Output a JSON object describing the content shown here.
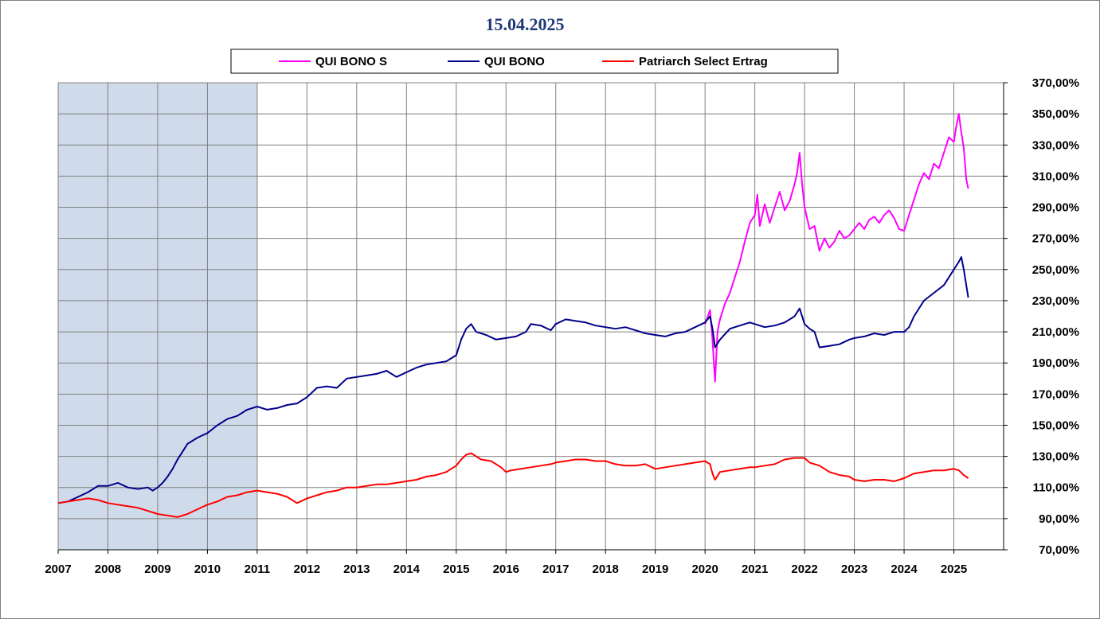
{
  "chart_data": {
    "type": "line",
    "title": "15.04.2025",
    "xlabel": "",
    "ylabel": "",
    "x_tick_labels": [
      "2007",
      "2008",
      "2009",
      "2010",
      "2011",
      "2012",
      "2013",
      "2014",
      "2015",
      "2016",
      "2017",
      "2018",
      "2019",
      "2020",
      "2021",
      "2022",
      "2023",
      "2024",
      "2025"
    ],
    "y_tick_labels": [
      "70,00%",
      "90,00%",
      "110,00%",
      "130,00%",
      "150,00%",
      "170,00%",
      "190,00%",
      "210,00%",
      "230,00%",
      "250,00%",
      "270,00%",
      "290,00%",
      "310,00%",
      "330,00%",
      "350,00%",
      "370,00%"
    ],
    "xlim": [
      2007.0,
      2026.0
    ],
    "ylim": [
      70,
      370
    ],
    "y_axis_position": "right",
    "grid": true,
    "legend_position": "top-center",
    "shaded_region": {
      "x_start": 2007.0,
      "x_end": 2011.0,
      "color": "#cfdbea"
    },
    "colors": {
      "QUI BONO S": "#ff00ff",
      "QUI BONO": "#00008b",
      "Patriarch Select Ertrag": "#ff0000"
    },
    "series": [
      {
        "name": "QUI BONO S",
        "color": "#ff00ff",
        "x": [
          2020.0,
          2020.1,
          2020.15,
          2020.2,
          2020.25,
          2020.3,
          2020.4,
          2020.5,
          2020.6,
          2020.7,
          2020.8,
          2020.9,
          2021.0,
          2021.05,
          2021.1,
          2021.2,
          2021.3,
          2021.4,
          2021.5,
          2021.6,
          2021.7,
          2021.8,
          2021.85,
          2021.9,
          2021.95,
          2022.0,
          2022.1,
          2022.2,
          2022.3,
          2022.4,
          2022.5,
          2022.6,
          2022.7,
          2022.8,
          2022.9,
          2023.0,
          2023.1,
          2023.2,
          2023.3,
          2023.4,
          2023.5,
          2023.6,
          2023.7,
          2023.8,
          2023.9,
          2024.0,
          2024.1,
          2024.2,
          2024.3,
          2024.4,
          2024.5,
          2024.6,
          2024.7,
          2024.8,
          2024.9,
          2025.0,
          2025.05,
          2025.1,
          2025.15,
          2025.2,
          2025.25,
          2025.29
        ],
        "values": [
          215,
          224,
          205,
          178,
          210,
          218,
          228,
          235,
          245,
          255,
          268,
          280,
          285,
          298,
          278,
          292,
          280,
          290,
          300,
          288,
          294,
          305,
          312,
          325,
          305,
          290,
          276,
          278,
          262,
          270,
          264,
          268,
          275,
          270,
          272,
          276,
          280,
          276,
          282,
          284,
          280,
          285,
          288,
          283,
          276,
          275,
          285,
          295,
          305,
          312,
          308,
          318,
          315,
          325,
          335,
          332,
          342,
          350,
          338,
          328,
          308,
          302
        ]
      },
      {
        "name": "QUI BONO",
        "color": "#00008b",
        "x": [
          2007.0,
          2007.2,
          2007.4,
          2007.6,
          2007.8,
          2008.0,
          2008.2,
          2008.4,
          2008.6,
          2008.8,
          2008.9,
          2009.0,
          2009.1,
          2009.2,
          2009.3,
          2009.4,
          2009.5,
          2009.6,
          2009.8,
          2010.0,
          2010.2,
          2010.4,
          2010.6,
          2010.8,
          2011.0,
          2011.2,
          2011.4,
          2011.6,
          2011.8,
          2012.0,
          2012.2,
          2012.4,
          2012.6,
          2012.8,
          2013.0,
          2013.2,
          2013.4,
          2013.6,
          2013.8,
          2014.0,
          2014.2,
          2014.4,
          2014.6,
          2014.8,
          2015.0,
          2015.1,
          2015.2,
          2015.3,
          2015.4,
          2015.6,
          2015.8,
          2016.0,
          2016.2,
          2016.4,
          2016.5,
          2016.7,
          2016.9,
          2017.0,
          2017.2,
          2017.4,
          2017.6,
          2017.8,
          2018.0,
          2018.2,
          2018.4,
          2018.6,
          2018.8,
          2019.0,
          2019.2,
          2019.4,
          2019.6,
          2019.8,
          2020.0,
          2020.1,
          2020.15,
          2020.2,
          2020.3,
          2020.5,
          2020.7,
          2020.9,
          2021.0,
          2021.2,
          2021.4,
          2021.6,
          2021.8,
          2021.9,
          2022.0,
          2022.1,
          2022.2,
          2022.3,
          2022.5,
          2022.7,
          2022.9,
          2023.0,
          2023.2,
          2023.4,
          2023.6,
          2023.8,
          2024.0,
          2024.1,
          2024.2,
          2024.4,
          2024.6,
          2024.8,
          2025.0,
          2025.1,
          2025.15,
          2025.2,
          2025.25,
          2025.29
        ],
        "values": [
          100,
          101,
          104,
          107,
          111,
          111,
          113,
          110,
          109,
          110,
          108,
          110,
          113,
          117,
          122,
          128,
          133,
          138,
          142,
          145,
          150,
          154,
          156,
          160,
          162,
          160,
          161,
          163,
          164,
          168,
          174,
          175,
          174,
          180,
          181,
          182,
          183,
          185,
          181,
          184,
          187,
          189,
          190,
          191,
          195,
          205,
          212,
          215,
          210,
          208,
          205,
          206,
          207,
          210,
          215,
          214,
          211,
          215,
          218,
          217,
          216,
          214,
          213,
          212,
          213,
          211,
          209,
          208,
          207,
          209,
          210,
          213,
          216,
          220,
          212,
          200,
          205,
          212,
          214,
          216,
          215,
          213,
          214,
          216,
          220,
          225,
          215,
          212,
          210,
          200,
          201,
          202,
          205,
          206,
          207,
          209,
          208,
          210,
          210,
          213,
          220,
          230,
          235,
          240,
          250,
          255,
          258,
          250,
          240,
          232
        ]
      },
      {
        "name": "Patriarch Select Ertrag",
        "color": "#ff0000",
        "x": [
          2007.0,
          2007.2,
          2007.4,
          2007.6,
          2007.8,
          2008.0,
          2008.2,
          2008.4,
          2008.6,
          2008.8,
          2009.0,
          2009.2,
          2009.4,
          2009.6,
          2009.8,
          2010.0,
          2010.2,
          2010.4,
          2010.6,
          2010.8,
          2011.0,
          2011.2,
          2011.4,
          2011.6,
          2011.8,
          2012.0,
          2012.2,
          2012.4,
          2012.6,
          2012.8,
          2013.0,
          2013.2,
          2013.4,
          2013.6,
          2013.8,
          2014.0,
          2014.2,
          2014.4,
          2014.6,
          2014.8,
          2015.0,
          2015.1,
          2015.2,
          2015.3,
          2015.5,
          2015.7,
          2015.9,
          2016.0,
          2016.1,
          2016.3,
          2016.5,
          2016.7,
          2016.9,
          2017.0,
          2017.2,
          2017.4,
          2017.6,
          2017.8,
          2018.0,
          2018.2,
          2018.4,
          2018.6,
          2018.8,
          2019.0,
          2019.2,
          2019.4,
          2019.6,
          2019.8,
          2020.0,
          2020.1,
          2020.15,
          2020.2,
          2020.3,
          2020.5,
          2020.7,
          2020.9,
          2021.0,
          2021.2,
          2021.4,
          2021.6,
          2021.8,
          2022.0,
          2022.1,
          2022.3,
          2022.5,
          2022.7,
          2022.9,
          2023.0,
          2023.2,
          2023.4,
          2023.6,
          2023.8,
          2024.0,
          2024.2,
          2024.4,
          2024.6,
          2024.8,
          2025.0,
          2025.1,
          2025.2,
          2025.29
        ],
        "values": [
          100,
          101,
          102,
          103,
          102,
          100,
          99,
          98,
          97,
          95,
          93,
          92,
          91,
          93,
          96,
          99,
          101,
          104,
          105,
          107,
          108,
          107,
          106,
          104,
          100,
          103,
          105,
          107,
          108,
          110,
          110,
          111,
          112,
          112,
          113,
          114,
          115,
          117,
          118,
          120,
          124,
          128,
          131,
          132,
          128,
          127,
          123,
          120,
          121,
          122,
          123,
          124,
          125,
          126,
          127,
          128,
          128,
          127,
          127,
          125,
          124,
          124,
          125,
          122,
          123,
          124,
          125,
          126,
          127,
          125,
          119,
          115,
          120,
          121,
          122,
          123,
          123,
          124,
          125,
          128,
          129,
          129,
          126,
          124,
          120,
          118,
          117,
          115,
          114,
          115,
          115,
          114,
          116,
          119,
          120,
          121,
          121,
          122,
          121,
          118,
          116
        ]
      }
    ]
  }
}
